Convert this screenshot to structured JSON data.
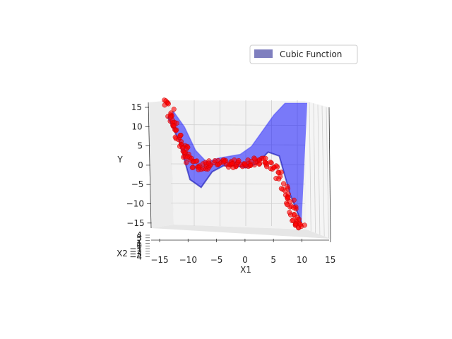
{
  "chart_data": {
    "type": "scatter",
    "subtype": "3d-surface-with-scatter",
    "title": "",
    "xlabel": "X1",
    "ylabel": "Y",
    "zlabel": "X2",
    "x_ticks": [
      "−15",
      "−10",
      "−5",
      "0",
      "5",
      "10",
      "15"
    ],
    "y_ticks": [
      "15",
      "10",
      "5",
      "0",
      "−5",
      "−10",
      "−15"
    ],
    "x2_ticks": [
      "4",
      "3",
      "2",
      "1",
      "0",
      "−1",
      "−2",
      "−3",
      "−4"
    ],
    "xlim": [
      -15,
      15
    ],
    "ylim": [
      -15,
      15
    ],
    "x2lim": [
      -4,
      4
    ],
    "grid": true,
    "legend": {
      "placement": "top-right",
      "entries": [
        "Cubic Function"
      ]
    },
    "series": [
      {
        "name": "Cubic Function",
        "kind": "surface",
        "color": "#0000ff",
        "x1": [
          -14,
          -12,
          -10,
          -8,
          -6,
          -4,
          -2,
          0,
          2,
          4,
          6,
          8,
          10
        ],
        "front_y": [
          12,
          6,
          -4,
          -6,
          -2,
          -0.5,
          -0.5,
          -1,
          0,
          3,
          2,
          -8,
          -15
        ],
        "back_y": [
          12,
          8,
          2,
          -1,
          0,
          0.5,
          1,
          3,
          7,
          11,
          14,
          14,
          14
        ]
      },
      {
        "name": "",
        "kind": "scatter",
        "color": "#ff0000",
        "x1": [
          -14,
          -13.5,
          -13,
          -12.5,
          -12,
          -11.5,
          -11,
          -10.5,
          -10,
          -9,
          -8,
          -7,
          -6,
          -5,
          -4,
          -3,
          -2,
          -1,
          0,
          1,
          2,
          3,
          4,
          5,
          6,
          7,
          7.5,
          8,
          8.5,
          9,
          9.5,
          10
        ],
        "y": [
          15.5,
          13,
          11,
          9,
          7,
          5,
          3.5,
          2,
          1,
          0,
          -0.5,
          -0.5,
          0,
          0,
          0,
          0,
          0,
          0,
          0,
          0.5,
          1,
          0.5,
          0,
          -1,
          -3,
          -6,
          -8,
          -10,
          -12,
          -14,
          -15,
          -16
        ]
      }
    ]
  }
}
